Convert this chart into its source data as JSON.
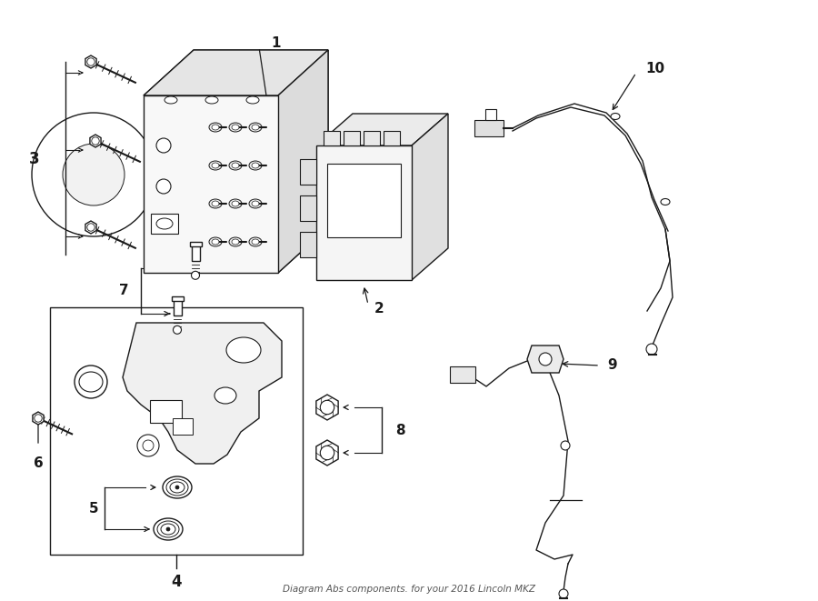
{
  "title": "Diagram Abs components. for your 2016 Lincoln MKZ",
  "bg_color": "#ffffff",
  "line_color": "#1a1a1a",
  "fig_width": 9.0,
  "fig_height": 6.61,
  "dpi": 100
}
